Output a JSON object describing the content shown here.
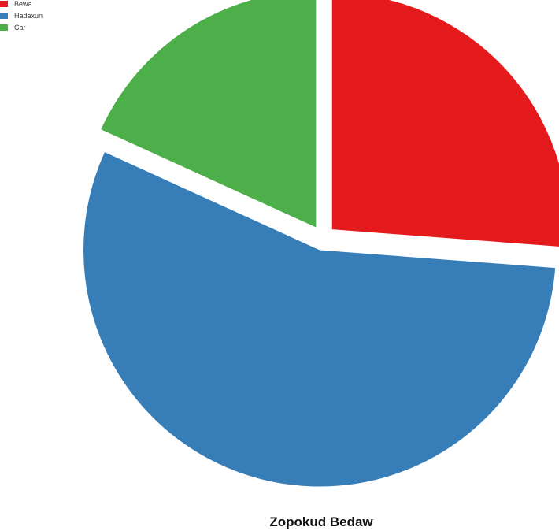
{
  "chart_data": {
    "type": "pie",
    "title": "Zopokud Bedaw",
    "legend_position": "top-left",
    "categories": [
      "Bewa",
      "Hadaxun",
      "Car"
    ],
    "values": [
      26.2,
      55.6,
      18.2
    ],
    "colors": [
      "#e41a1c",
      "#377eb8",
      "#4daf4a"
    ],
    "start_angle_deg": 0,
    "direction": "clockwise"
  }
}
